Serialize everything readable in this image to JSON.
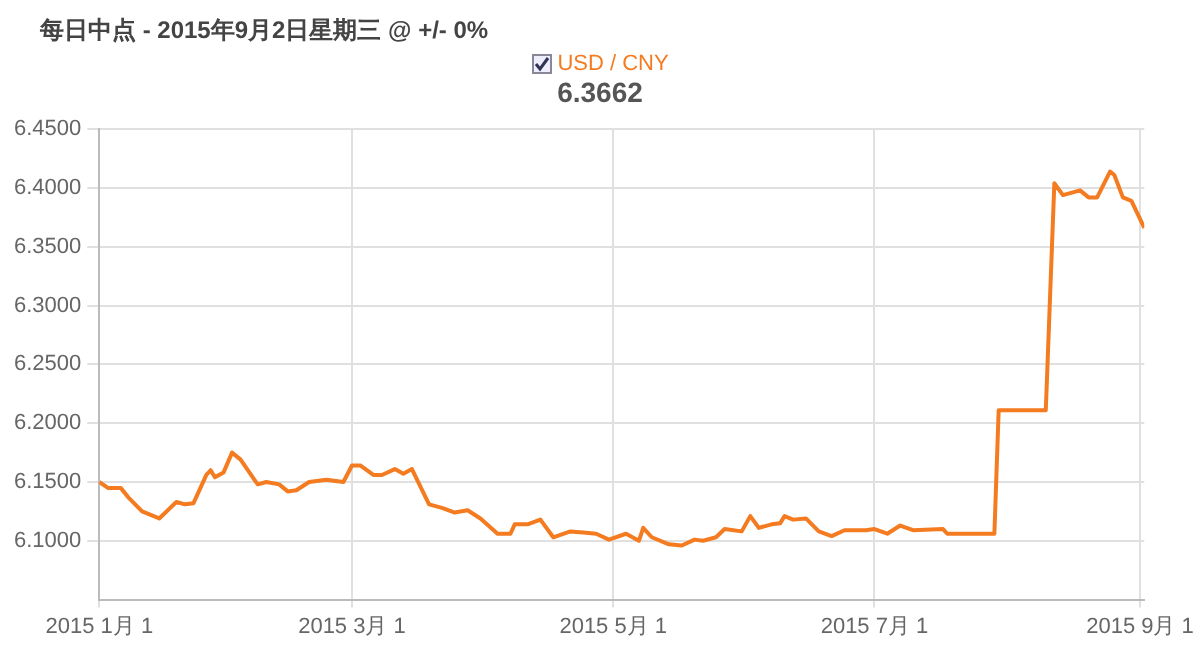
{
  "chart_data": {
    "type": "line",
    "title": "每日中点 - 2015年9月2日星期三 @ +/- 0%",
    "subtitle": "6.3662",
    "x": [
      "2015-01-01",
      "2015-01-03",
      "2015-01-06",
      "2015-01-08",
      "2015-01-11",
      "2015-01-15",
      "2015-01-19",
      "2015-01-21",
      "2015-01-23",
      "2015-01-26",
      "2015-01-27",
      "2015-01-28",
      "2015-01-30",
      "2015-02-01",
      "2015-02-03",
      "2015-02-06",
      "2015-02-07",
      "2015-02-09",
      "2015-02-12",
      "2015-02-14",
      "2015-02-16",
      "2015-02-19",
      "2015-02-23",
      "2015-02-27",
      "2015-03-01",
      "2015-03-03",
      "2015-03-06",
      "2015-03-08",
      "2015-03-11",
      "2015-03-13",
      "2015-03-15",
      "2015-03-19",
      "2015-03-22",
      "2015-03-25",
      "2015-03-28",
      "2015-03-31",
      "2015-04-04",
      "2015-04-07",
      "2015-04-08",
      "2015-04-11",
      "2015-04-14",
      "2015-04-17",
      "2015-04-21",
      "2015-04-24",
      "2015-04-27",
      "2015-04-30",
      "2015-05-04",
      "2015-05-07",
      "2015-05-08",
      "2015-05-10",
      "2015-05-14",
      "2015-05-17",
      "2015-05-20",
      "2015-05-22",
      "2015-05-25",
      "2015-05-27",
      "2015-05-31",
      "2015-06-02",
      "2015-06-04",
      "2015-06-07",
      "2015-06-09",
      "2015-06-10",
      "2015-06-12",
      "2015-06-15",
      "2015-06-18",
      "2015-06-21",
      "2015-06-24",
      "2015-06-29",
      "2015-07-01",
      "2015-07-04",
      "2015-07-07",
      "2015-07-10",
      "2015-07-17",
      "2015-07-18",
      "2015-07-29",
      "2015-07-30",
      "2015-08-10",
      "2015-08-12",
      "2015-08-14",
      "2015-08-18",
      "2015-08-20",
      "2015-08-22",
      "2015-08-25",
      "2015-08-26",
      "2015-08-28",
      "2015-08-30",
      "2015-09-02"
    ],
    "series": [
      {
        "name": "USD / CNY",
        "color": "#f47b20",
        "values": [
          6.15,
          6.145,
          6.145,
          6.136,
          6.125,
          6.119,
          6.133,
          6.131,
          6.132,
          6.156,
          6.16,
          6.154,
          6.158,
          6.175,
          6.169,
          6.153,
          6.148,
          6.15,
          6.148,
          6.142,
          6.143,
          6.15,
          6.152,
          6.15,
          6.164,
          6.164,
          6.156,
          6.156,
          6.161,
          6.157,
          6.161,
          6.131,
          6.128,
          6.124,
          6.126,
          6.119,
          6.106,
          6.106,
          6.114,
          6.114,
          6.118,
          6.103,
          6.108,
          6.107,
          6.106,
          6.101,
          6.106,
          6.1,
          6.111,
          6.103,
          6.097,
          6.096,
          6.101,
          6.1,
          6.103,
          6.11,
          6.108,
          6.121,
          6.111,
          6.114,
          6.115,
          6.121,
          6.118,
          6.119,
          6.108,
          6.104,
          6.109,
          6.109,
          6.11,
          6.106,
          6.113,
          6.109,
          6.11,
          6.106,
          6.106,
          6.211,
          6.211,
          6.404,
          6.394,
          6.398,
          6.392,
          6.392,
          6.414,
          6.411,
          6.392,
          6.389,
          6.366
        ]
      }
    ],
    "xlim": [
      "2015-01-01",
      "2015-09-02"
    ],
    "xticks": [
      {
        "value": "2015-01-01",
        "label": "2015 1月 1"
      },
      {
        "value": "2015-03-01",
        "label": "2015 3月 1"
      },
      {
        "value": "2015-05-01",
        "label": "2015 5月 1"
      },
      {
        "value": "2015-07-01",
        "label": "2015 7月 1"
      },
      {
        "value": "2015-09-01",
        "label": "2015 9月 1"
      }
    ],
    "ylim": [
      6.05,
      6.45
    ],
    "yticks": [
      {
        "value": 6.1,
        "label": "6.1000"
      },
      {
        "value": 6.15,
        "label": "6.1500"
      },
      {
        "value": 6.2,
        "label": "6.2000"
      },
      {
        "value": 6.25,
        "label": "6.2500"
      },
      {
        "value": 6.3,
        "label": "6.3000"
      },
      {
        "value": 6.35,
        "label": "6.3500"
      },
      {
        "value": 6.4,
        "label": "6.4000"
      },
      {
        "value": 6.45,
        "label": "6.4500"
      }
    ],
    "grid": true,
    "legend": "top",
    "marker": "none",
    "line_style": "solid"
  }
}
